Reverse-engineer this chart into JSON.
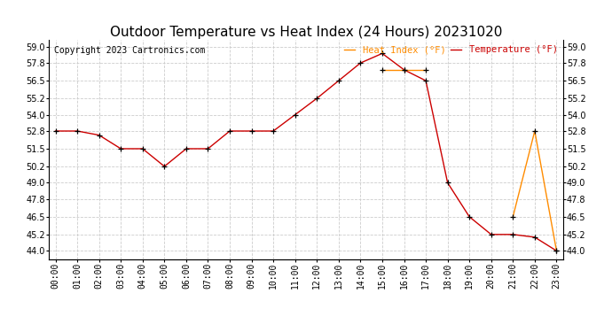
{
  "title": "Outdoor Temperature vs Heat Index (24 Hours) 20231020",
  "copyright": "Copyright 2023 Cartronics.com",
  "legend_heat": "Heat Index (°F)",
  "legend_temp": "Temperature (°F)",
  "hours": [
    "00:00",
    "01:00",
    "02:00",
    "03:00",
    "04:00",
    "05:00",
    "06:00",
    "07:00",
    "08:00",
    "09:00",
    "10:00",
    "11:00",
    "12:00",
    "13:00",
    "14:00",
    "15:00",
    "16:00",
    "17:00",
    "18:00",
    "19:00",
    "20:00",
    "21:00",
    "22:00",
    "23:00"
  ],
  "temperature": [
    52.8,
    52.8,
    52.5,
    51.5,
    51.5,
    50.2,
    51.5,
    51.5,
    52.8,
    52.8,
    52.8,
    54.0,
    55.2,
    56.5,
    57.8,
    58.5,
    57.3,
    56.5,
    49.0,
    46.5,
    45.2,
    45.2,
    45.0,
    44.0
  ],
  "heat_index_segments": [
    {
      "x": [
        15,
        16,
        17
      ],
      "y": [
        57.3,
        57.3,
        57.3
      ]
    },
    {
      "x": [
        21,
        22,
        23
      ],
      "y": [
        46.5,
        52.8,
        44.0
      ]
    }
  ],
  "ylim_min": 43.4,
  "ylim_max": 59.5,
  "yticks": [
    44.0,
    45.2,
    46.5,
    47.8,
    49.0,
    50.2,
    51.5,
    52.8,
    54.0,
    55.2,
    56.5,
    57.8,
    59.0
  ],
  "temp_color": "#cc0000",
  "heat_color": "#ff8c00",
  "marker_color": "#000000",
  "background_color": "#ffffff",
  "grid_color": "#cccccc",
  "title_fontsize": 11,
  "tick_fontsize": 7,
  "copyright_fontsize": 7,
  "legend_fontsize": 7.5
}
